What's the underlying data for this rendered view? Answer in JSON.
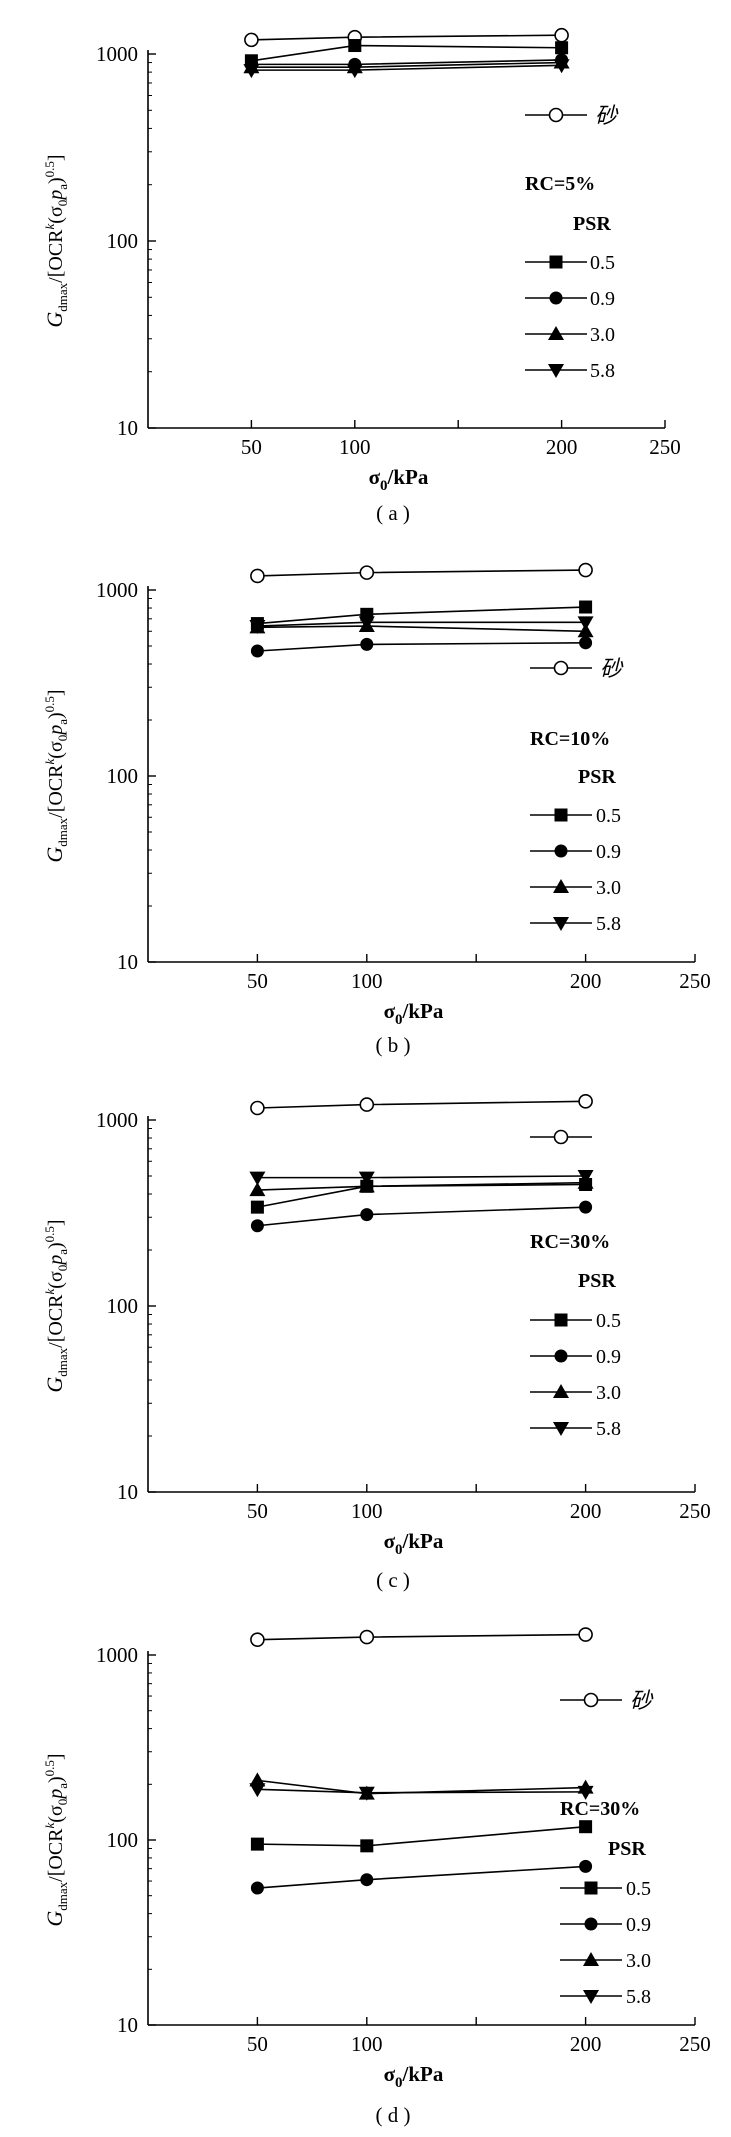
{
  "y_axis_label_parts": [
    "G",
    "dmax",
    "/[OCR",
    "k",
    "(σ",
    "0",
    "p",
    "a",
    ")",
    "0.5",
    "]"
  ],
  "x_axis_label_parts": [
    "σ",
    "0",
    "/kPa"
  ],
  "panels_text": {
    "0": {
      "label": "( a )",
      "rc": "RC=5%",
      "psr_title": "PSR",
      "sand": "砂",
      "legend": [
        "0.5",
        "0.9",
        "3.0",
        "5.8"
      ]
    },
    "1": {
      "label": "( b )",
      "rc": "RC=10%",
      "psr_title": "PSR",
      "sand": "砂",
      "legend": [
        "0.5",
        "0.9",
        "3.0",
        "5.8"
      ]
    },
    "2": {
      "label": "( c )",
      "rc": "RC=30%",
      "psr_title": "PSR",
      "sand": "",
      "legend": [
        "0.5",
        "0.9",
        "3.0",
        "5.8"
      ]
    },
    "3": {
      "label": "( d )",
      "rc": "RC=30%",
      "psr_title": "PSR",
      "sand": "砂",
      "legend": [
        "0.5",
        "0.9",
        "3.0",
        "5.8"
      ]
    }
  },
  "chart_data": [
    {
      "type": "line",
      "panel": "(a)",
      "xlabel": "σ0/kPa",
      "ylabel": "Gdmax/[OCR^k(σ0pa)^0.5]",
      "xlim": [
        0,
        250
      ],
      "ylim": [
        10,
        1000
      ],
      "y_scale": "log",
      "xticks": [
        50,
        100,
        150,
        200,
        250
      ],
      "xtick_labels": [
        "50",
        "100",
        "",
        "200",
        "250"
      ],
      "yticks": [
        10,
        100,
        1000
      ],
      "x": [
        50,
        100,
        200
      ],
      "annotation": "RC=5%",
      "legend_title": "PSR",
      "series": [
        {
          "name": "砂",
          "marker": "open-circle",
          "values": [
            1190,
            1230,
            1260
          ]
        },
        {
          "name": "0.5",
          "marker": "square",
          "values": [
            920,
            1110,
            1080
          ]
        },
        {
          "name": "0.9",
          "marker": "circle",
          "values": [
            880,
            880,
            930
          ]
        },
        {
          "name": "3.0",
          "marker": "triangle-up",
          "values": [
            850,
            850,
            900
          ]
        },
        {
          "name": "5.8",
          "marker": "triangle-down",
          "values": [
            820,
            820,
            870
          ]
        }
      ]
    },
    {
      "type": "line",
      "panel": "(b)",
      "xlabel": "σ0/kPa",
      "ylabel": "Gdmax/[OCR^k(σ0pa)^0.5]",
      "xlim": [
        0,
        250
      ],
      "ylim": [
        10,
        1000
      ],
      "y_scale": "log",
      "xticks": [
        50,
        100,
        150,
        200,
        250
      ],
      "xtick_labels": [
        "50",
        "100",
        "",
        "200",
        "250"
      ],
      "yticks": [
        10,
        100,
        1000
      ],
      "x": [
        50,
        100,
        200
      ],
      "annotation": "RC=10%",
      "legend_title": "PSR",
      "series": [
        {
          "name": "砂",
          "marker": "open-circle",
          "values": [
            1190,
            1240,
            1280
          ]
        },
        {
          "name": "0.5",
          "marker": "square",
          "values": [
            660,
            740,
            810
          ]
        },
        {
          "name": "0.9",
          "marker": "circle",
          "values": [
            470,
            510,
            520
          ]
        },
        {
          "name": "3.0",
          "marker": "triangle-up",
          "values": [
            630,
            640,
            600
          ]
        },
        {
          "name": "5.8",
          "marker": "triangle-down",
          "values": [
            640,
            670,
            670
          ]
        }
      ]
    },
    {
      "type": "line",
      "panel": "(c)",
      "xlabel": "σ0/kPa",
      "ylabel": "Gdmax/[OCR^k(σ0pa)^0.5]",
      "xlim": [
        0,
        250
      ],
      "ylim": [
        10,
        1000
      ],
      "y_scale": "log",
      "xticks": [
        50,
        100,
        150,
        200,
        250
      ],
      "xtick_labels": [
        "50",
        "100",
        "",
        "200",
        "250"
      ],
      "yticks": [
        10,
        100,
        1000
      ],
      "x": [
        50,
        100,
        200
      ],
      "annotation": "RC=30%",
      "legend_title": "PSR",
      "series": [
        {
          "name": "",
          "marker": "open-circle",
          "values": [
            1160,
            1210,
            1260
          ]
        },
        {
          "name": "0.5",
          "marker": "square",
          "values": [
            340,
            440,
            450
          ]
        },
        {
          "name": "0.9",
          "marker": "circle",
          "values": [
            270,
            310,
            340
          ]
        },
        {
          "name": "3.0",
          "marker": "triangle-up",
          "values": [
            420,
            440,
            460
          ]
        },
        {
          "name": "5.8",
          "marker": "triangle-down",
          "values": [
            490,
            490,
            500
          ]
        }
      ]
    },
    {
      "type": "line",
      "panel": "(d)",
      "xlabel": "σ0/kPa",
      "ylabel": "Gdmax/[OCR^k(σ0pa)^0.5]",
      "xlim": [
        0,
        250
      ],
      "ylim": [
        10,
        1000
      ],
      "y_scale": "log",
      "xticks": [
        50,
        100,
        150,
        200,
        250
      ],
      "xtick_labels": [
        "50",
        "100",
        "",
        "200",
        "250"
      ],
      "yticks": [
        10,
        100,
        1000
      ],
      "x": [
        50,
        100,
        200
      ],
      "annotation": "RC=30%",
      "legend_title": "PSR",
      "series": [
        {
          "name": "砂",
          "marker": "open-circle",
          "values": [
            1210,
            1250,
            1290
          ]
        },
        {
          "name": "0.5",
          "marker": "square",
          "values": [
            95,
            93,
            118
          ]
        },
        {
          "name": "0.9",
          "marker": "circle",
          "values": [
            55,
            61,
            72
          ]
        },
        {
          "name": "3.0",
          "marker": "triangle-up",
          "values": [
            210,
            178,
            192
          ]
        },
        {
          "name": "5.8",
          "marker": "triangle-down",
          "values": [
            188,
            180,
            182
          ]
        }
      ]
    }
  ]
}
